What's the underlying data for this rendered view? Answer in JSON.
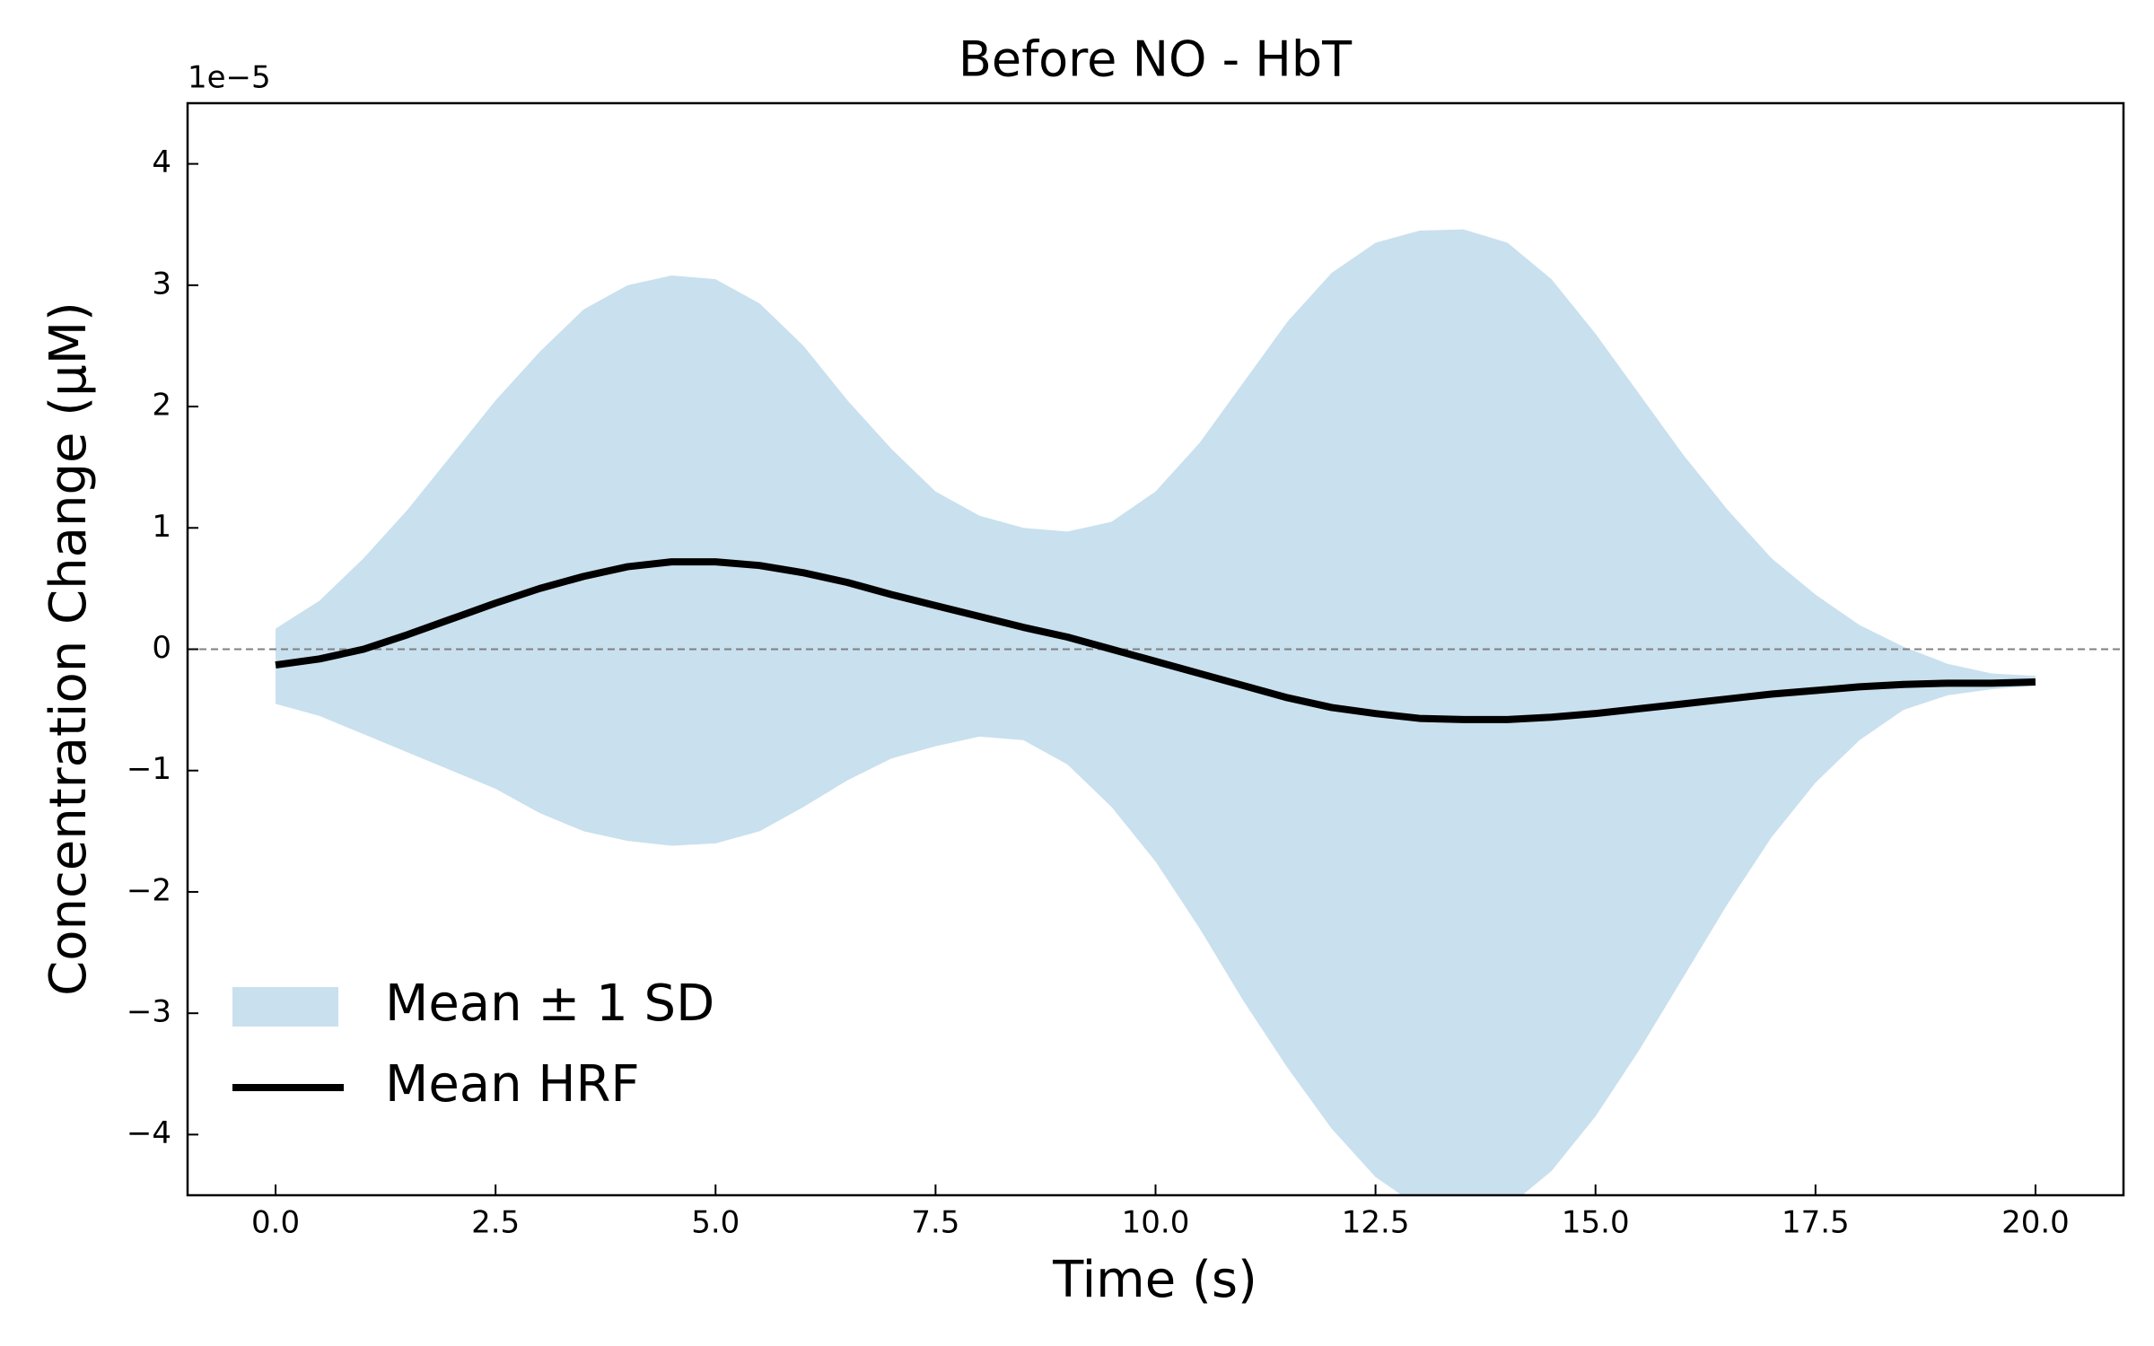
{
  "chart_data": {
    "type": "line",
    "title": "Before NO - HbT",
    "xlabel": "Time (s)",
    "ylabel": "Concentration Change (μM)",
    "y_offset_text": "1e−5",
    "x": [
      0,
      0.5,
      1,
      1.5,
      2,
      2.5,
      3,
      3.5,
      4,
      4.5,
      5,
      5.5,
      6,
      6.5,
      7,
      7.5,
      8,
      8.5,
      9,
      9.5,
      10,
      10.5,
      11,
      11.5,
      12,
      12.5,
      13,
      13.5,
      14,
      14.5,
      15,
      15.5,
      16,
      16.5,
      17,
      17.5,
      18,
      18.5,
      19,
      19.5,
      20
    ],
    "series": [
      {
        "name": "Mean HRF",
        "color": "#000000",
        "values": [
          -0.13,
          -0.08,
          0.0,
          0.12,
          0.25,
          0.38,
          0.5,
          0.6,
          0.68,
          0.72,
          0.72,
          0.69,
          0.63,
          0.55,
          0.45,
          0.36,
          0.27,
          0.18,
          0.1,
          0.0,
          -0.1,
          -0.2,
          -0.3,
          -0.4,
          -0.48,
          -0.53,
          -0.57,
          -0.58,
          -0.58,
          -0.56,
          -0.53,
          -0.49,
          -0.45,
          -0.41,
          -0.37,
          -0.34,
          -0.31,
          -0.29,
          -0.28,
          -0.28,
          -0.27
        ]
      }
    ],
    "band": {
      "name": "Mean ± 1 SD",
      "color": "#c9e0ee",
      "upper": [
        0.17,
        0.4,
        0.75,
        1.15,
        1.6,
        2.05,
        2.45,
        2.8,
        3.0,
        3.08,
        3.05,
        2.85,
        2.5,
        2.05,
        1.65,
        1.3,
        1.1,
        1.0,
        0.97,
        1.05,
        1.3,
        1.7,
        2.2,
        2.7,
        3.1,
        3.35,
        3.45,
        3.46,
        3.35,
        3.05,
        2.6,
        2.1,
        1.6,
        1.15,
        0.75,
        0.45,
        0.2,
        0.02,
        -0.12,
        -0.2,
        -0.22
      ],
      "lower": [
        -0.45,
        -0.55,
        -0.7,
        -0.85,
        -1.0,
        -1.15,
        -1.35,
        -1.5,
        -1.58,
        -1.62,
        -1.6,
        -1.5,
        -1.3,
        -1.08,
        -0.9,
        -0.8,
        -0.72,
        -0.75,
        -0.95,
        -1.3,
        -1.75,
        -2.3,
        -2.9,
        -3.45,
        -3.95,
        -4.35,
        -4.6,
        -4.7,
        -4.6,
        -4.3,
        -3.85,
        -3.3,
        -2.7,
        -2.1,
        -1.55,
        -1.1,
        -0.75,
        -0.5,
        -0.38,
        -0.33,
        -0.3
      ]
    },
    "hline": 0,
    "xlim": [
      -1,
      21
    ],
    "ylim": [
      -4.5,
      4.5
    ],
    "xticks": [
      {
        "value": 0,
        "label": "0.0"
      },
      {
        "value": 2.5,
        "label": "2.5"
      },
      {
        "value": 5,
        "label": "5.0"
      },
      {
        "value": 7.5,
        "label": "7.5"
      },
      {
        "value": 10,
        "label": "10.0"
      },
      {
        "value": 12.5,
        "label": "12.5"
      },
      {
        "value": 15,
        "label": "15.0"
      },
      {
        "value": 17.5,
        "label": "17.5"
      },
      {
        "value": 20,
        "label": "20.0"
      }
    ],
    "yticks": [
      {
        "value": -4,
        "label": "−4"
      },
      {
        "value": -3,
        "label": "−3"
      },
      {
        "value": -2,
        "label": "−2"
      },
      {
        "value": -1,
        "label": "−1"
      },
      0,
      1,
      2,
      3,
      4
    ],
    "legend": "lower left"
  }
}
